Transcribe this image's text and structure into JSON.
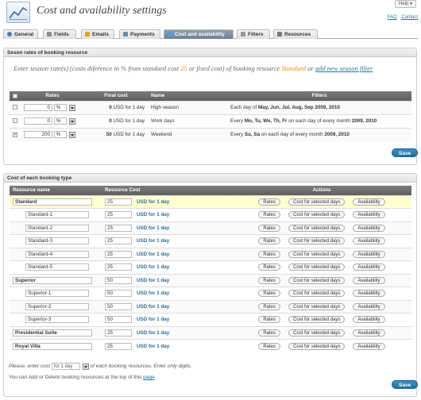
{
  "header": {
    "title": "Cost and availability settings",
    "help": "Help",
    "faq": "FAQ",
    "contact": "Contact"
  },
  "tabs": [
    {
      "label": "General",
      "icon": "general-icon",
      "color": "#4a7fb0"
    },
    {
      "label": "Fields",
      "icon": "fields-icon",
      "color": "#8c8c8c"
    },
    {
      "label": "Emails",
      "icon": "emails-icon",
      "color": "#e0a020"
    },
    {
      "label": "Payments",
      "icon": "payments-icon",
      "color": "#6d8aa8"
    },
    {
      "label": "Cost and availability",
      "icon": "cost-icon",
      "color": "#5b9bd5"
    },
    {
      "label": "Filters",
      "icon": "filters-icon",
      "color": "#999999"
    },
    {
      "label": "Resources",
      "icon": "resources-icon",
      "color": "#7a7a7a"
    }
  ],
  "season": {
    "section_title": "Seson rates of booking resource",
    "intro_prefix": "Enter season rate(s) (costs diference in % from standard cost ",
    "intro_cost": "25",
    "intro_middle": " or fixed cost) of booking resource ",
    "intro_resource": "Standard",
    "intro_or": " or ",
    "intro_link": "add new season filter",
    "columns": {
      "rates": "Rates",
      "final": "Final cost",
      "name": "Name",
      "filters": "Filters"
    },
    "rows": [
      {
        "checked": "",
        "rate": "0",
        "unit": "%",
        "final": "0",
        "currency": "USD for 1 day",
        "name": "High season",
        "filter_a": "Each day of ",
        "filter_b": "May, Jun, Jul, Aug, Sep 2009, 2010",
        "filter_c": ""
      },
      {
        "checked": "",
        "rate": "0",
        "unit": "%",
        "final": "0",
        "currency": "USD for 1 day",
        "name": "Work days",
        "filter_a": "Every ",
        "filter_b": "Mo, Tu, We, Th, Fr",
        "filter_c": " on each day of every month ",
        "filter_d": "2009, 2010"
      },
      {
        "checked": "✓",
        "rate": "200",
        "unit": "%",
        "final": "50",
        "currency": "USD for 1 day",
        "name": "Weekend",
        "filter_a": "Every ",
        "filter_b": "Su, Sa",
        "filter_c": " on each day of every month ",
        "filter_d": "2009, 2010"
      }
    ],
    "save": "Save"
  },
  "types": {
    "section_title": "Cost of each booking type",
    "columns": {
      "name": "Resource name",
      "cost": "Resource Cost",
      "actions": "Actions"
    },
    "rates_btn": "Rates",
    "cost_btn": "Cost for selected days",
    "avail_btn": "Availability",
    "rows": [
      {
        "name": "Standard",
        "cost": "25",
        "unit": "USD for 1 day",
        "parent": true,
        "highlight": true
      },
      {
        "name": "Standard-1",
        "cost": "25",
        "unit": "USD for 1 day",
        "parent": false
      },
      {
        "name": "Standard-2",
        "cost": "25",
        "unit": "USD for 1 day",
        "parent": false
      },
      {
        "name": "Standard-3",
        "cost": "25",
        "unit": "USD for 1 day",
        "parent": false
      },
      {
        "name": "Standard-4",
        "cost": "25",
        "unit": "USD for 1 day",
        "parent": false
      },
      {
        "name": "Standard-5",
        "cost": "25",
        "unit": "USD for 1 day",
        "parent": false
      },
      {
        "name": "Superior",
        "cost": "50",
        "unit": "USD for 1 day",
        "parent": true
      },
      {
        "name": "Superior-1",
        "cost": "50",
        "unit": "USD for 1 day",
        "parent": false
      },
      {
        "name": "Superior-2",
        "cost": "50",
        "unit": "USD for 1 day",
        "parent": false
      },
      {
        "name": "Superior-3",
        "cost": "50",
        "unit": "USD for 1 day",
        "parent": false
      },
      {
        "name": "Presidential Suite",
        "cost": "25",
        "unit": "USD for 1 day",
        "parent": true
      },
      {
        "name": "Royal Villa",
        "cost": "25",
        "unit": "USD for 1 day",
        "parent": true
      }
    ],
    "enter_note_a": "Please, enter cost ",
    "enter_select": "for 1 day",
    "enter_note_b": " of each booking resources. Enter only digits.",
    "add_note_a": "You can Add or Delete booking resources at the top of this ",
    "add_note_link": "page",
    "save": "Save"
  }
}
